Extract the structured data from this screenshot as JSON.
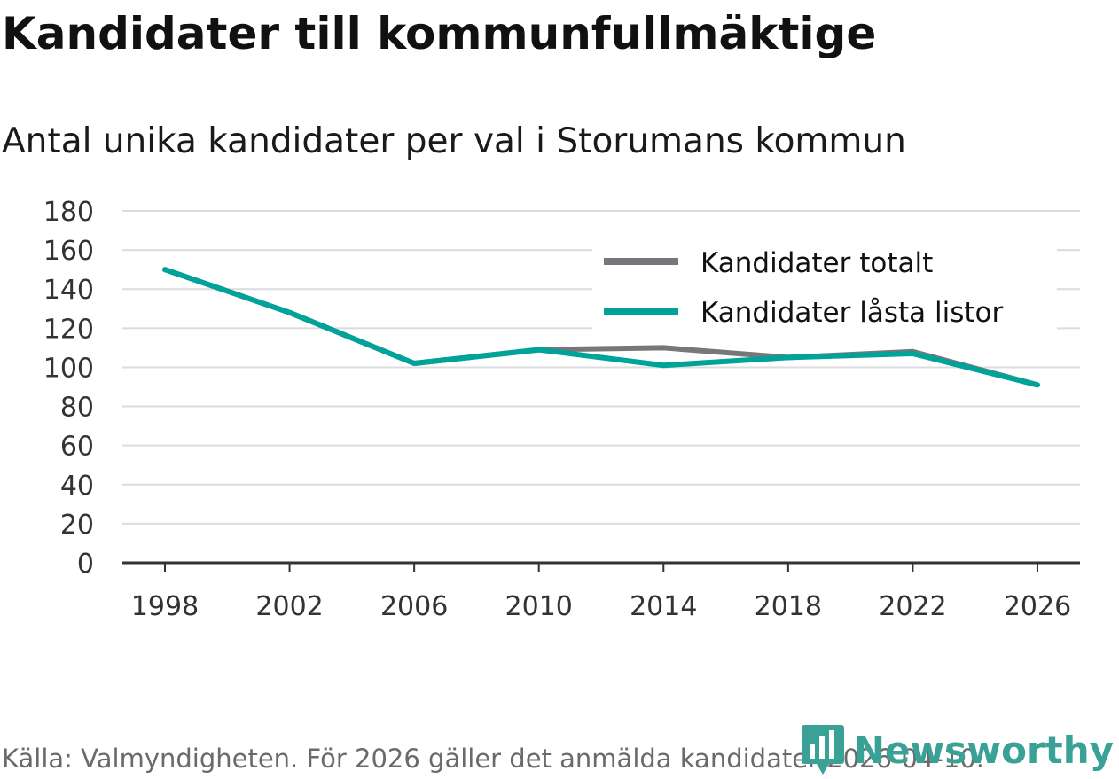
{
  "title": "Kandidater till kommunfullmäktige",
  "subtitle": "Antal unika kandidater per val i Storumans kommun",
  "source": "Källa: Valmyndigheten. För 2026 gäller det anmälda kandidater 2026-04-10.",
  "brand": {
    "name": "Newsworthy",
    "icon": "bar-chart-pin-icon",
    "color": "#3aa196"
  },
  "chart_data": {
    "type": "line",
    "title": "Kandidater till kommunfullmäktige",
    "subtitle": "Antal unika kandidater per val i Storumans kommun",
    "xlabel": "",
    "ylabel": "",
    "x": [
      1998,
      2002,
      2006,
      2010,
      2014,
      2018,
      2022,
      2026
    ],
    "ylim": [
      0,
      180
    ],
    "yticks": [
      0,
      20,
      40,
      60,
      80,
      100,
      120,
      140,
      160,
      180
    ],
    "grid": true,
    "legend_position": "top-right",
    "series": [
      {
        "name": "Kandidater totalt",
        "color": "#77777b",
        "values": [
          150,
          128,
          102,
          109,
          110,
          105,
          108,
          91
        ]
      },
      {
        "name": "Kandidater låsta listor",
        "color": "#00a399",
        "values": [
          150,
          128,
          102,
          109,
          101,
          105,
          107,
          91
        ]
      }
    ]
  }
}
